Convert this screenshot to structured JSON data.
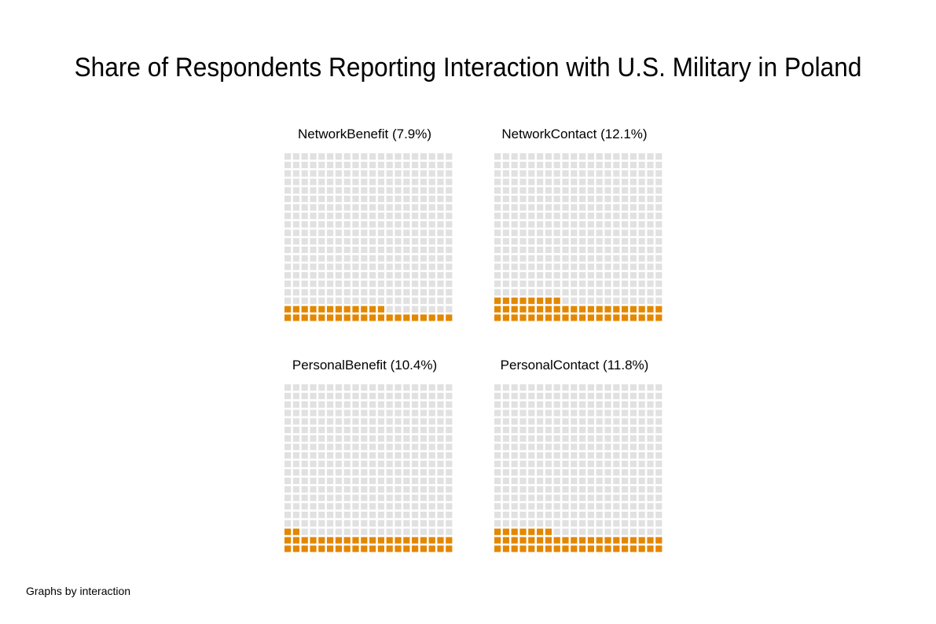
{
  "title": "Share of Respondents Reporting Interaction with U.S. Military in Poland",
  "note": "Graphs by interaction",
  "colors": {
    "filled": "#E38700",
    "empty": "#E1E1E1",
    "background": "#FFFFFF"
  },
  "chart_data": {
    "type": "waffle",
    "grid": "20x20",
    "panels": [
      {
        "label": "NetworkBenefit (7.9%)",
        "value": 7.9
      },
      {
        "label": "NetworkContact (12.1%)",
        "value": 12.1
      },
      {
        "label": "PersonalBenefit (10.4%)",
        "value": 10.4
      },
      {
        "label": "PersonalContact (11.8%)",
        "value": 11.8
      }
    ]
  }
}
